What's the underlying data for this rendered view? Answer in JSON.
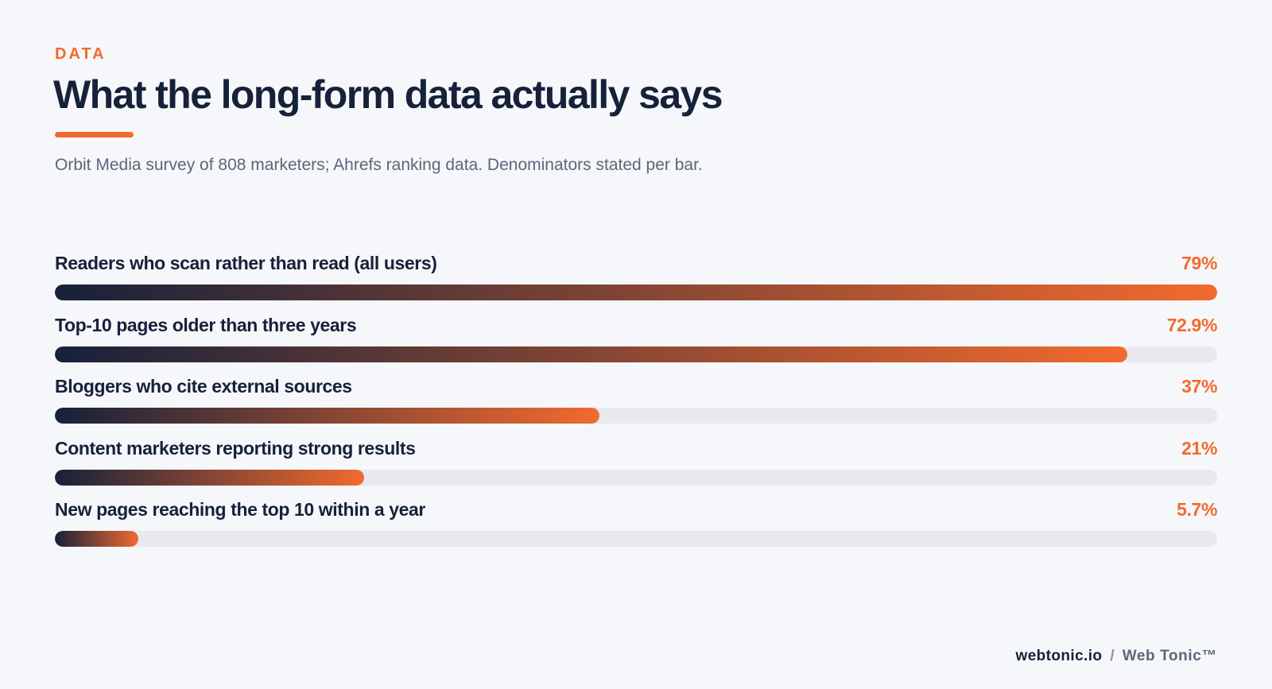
{
  "header": {
    "eyebrow": "DATA",
    "title": "What the long-form data actually says",
    "subtitle": "Orbit Media survey of 808 marketers; Ahrefs ranking data. Denominators stated per bar."
  },
  "colors": {
    "accent": "#f26a2e",
    "navy": "#16213a",
    "track": "#e7e9ee",
    "background": "#f6f7fa"
  },
  "chart_data": {
    "type": "bar",
    "orientation": "horizontal",
    "title": "What the long-form data actually says",
    "categories": [
      "Readers who scan rather than read (all users)",
      "Top-10 pages older than three years",
      "Bloggers who cite external sources",
      "Content marketers reporting strong results",
      "New pages reaching the top 10 within a year"
    ],
    "values": [
      79,
      72.9,
      37,
      21,
      5.7
    ],
    "value_labels": [
      "79%",
      "72.9%",
      "37%",
      "21%",
      "5.7%"
    ],
    "unit": "%",
    "xlim": [
      0,
      79
    ],
    "grid": false,
    "legend": "none"
  },
  "footer": {
    "site": "webtonic.io",
    "separator": "/",
    "brand": "Web Tonic™"
  }
}
